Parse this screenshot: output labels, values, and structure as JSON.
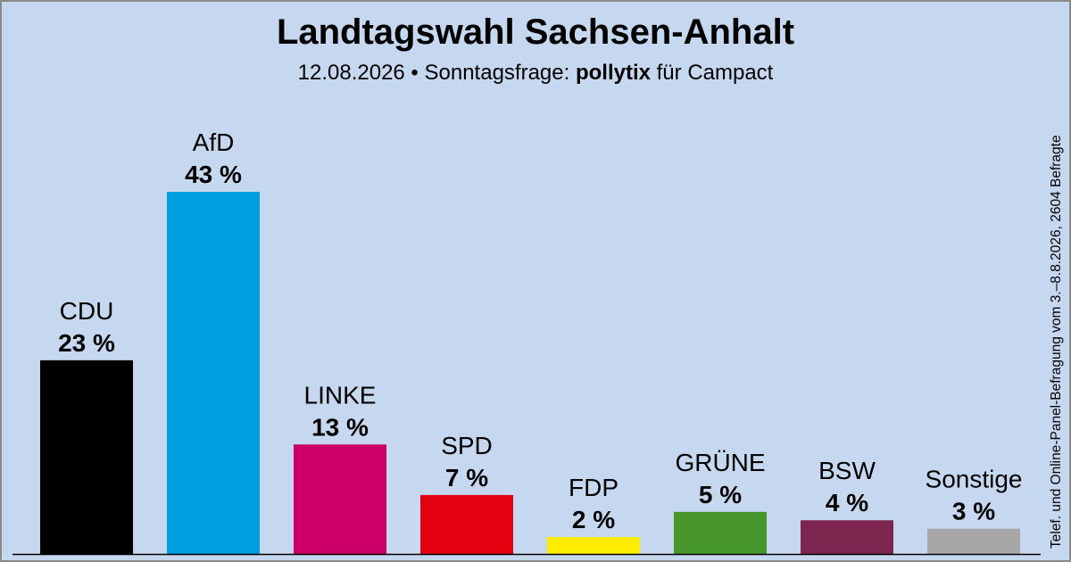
{
  "header": {
    "title": "Landtagswahl Sachsen-Anhalt",
    "subtitle_prefix": "12.08.2026 • Sonntagsfrage: ",
    "subtitle_institute": "pollytix",
    "subtitle_suffix": " für Campact"
  },
  "source_note": "Telef. und Online-Panel-Befragung vom 3.–8.8.2026, 2604 Befragte",
  "chart_data": {
    "type": "bar",
    "title": "Landtagswahl Sachsen-Anhalt",
    "xlabel": "",
    "ylabel": "",
    "grid": false,
    "legend": "none",
    "categories": [
      "CDU",
      "AfD",
      "LINKE",
      "SPD",
      "FDP",
      "GRÜNE",
      "BSW",
      "Sonstige"
    ],
    "values": [
      23,
      43,
      13,
      7,
      2,
      5,
      4,
      3
    ],
    "value_labels": [
      "23 %",
      "43 %",
      "13 %",
      "7 %",
      "2 %",
      "5 %",
      "4 %",
      "3 %"
    ],
    "bold_categories": [
      "Sonstige"
    ],
    "colors": [
      "#000000",
      "#009ee0",
      "#cc0066",
      "#e3000f",
      "#ffed00",
      "#46962b",
      "#7d254f",
      "#a6a6a6"
    ],
    "ylim": [
      0,
      43
    ]
  }
}
